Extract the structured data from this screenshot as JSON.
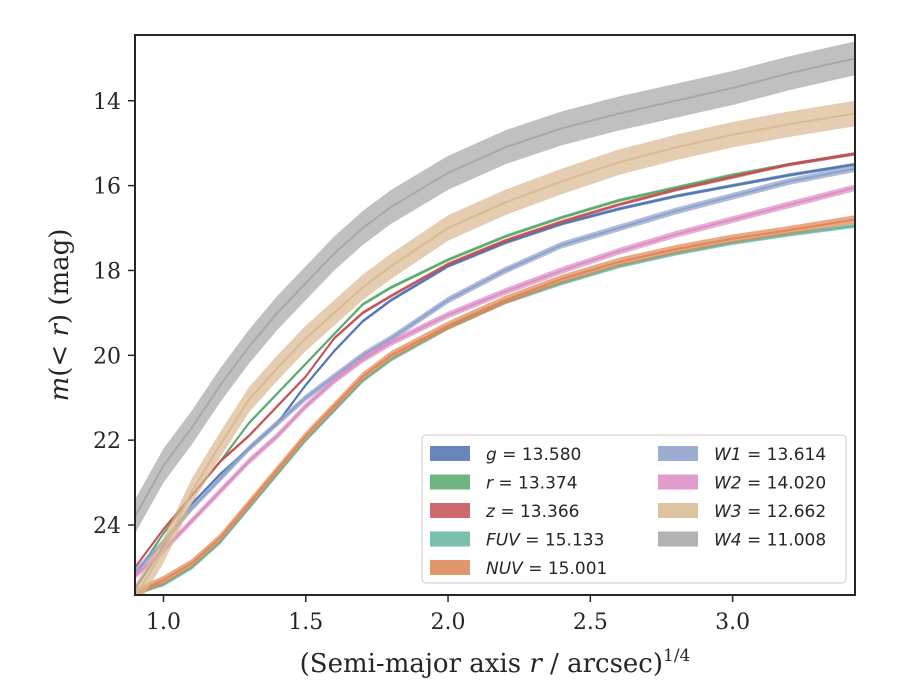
{
  "chart_data": {
    "type": "line",
    "xlabel": "(Semi-major axis r / arcsec)^1/4",
    "ylabel": "m(< r) (mag)",
    "xlim": [
      0.9,
      3.43
    ],
    "ylim": [
      25.65,
      12.45
    ],
    "y_inverted": true,
    "xticks": [
      1.0,
      1.5,
      2.0,
      2.5,
      3.0
    ],
    "xtick_labels": [
      "1.0",
      "1.5",
      "2.0",
      "2.5",
      "3.0"
    ],
    "yticks": [
      14,
      16,
      18,
      20,
      22,
      24
    ],
    "ytick_labels": [
      "14",
      "16",
      "18",
      "20",
      "22",
      "24"
    ],
    "grid": false,
    "legend": {
      "placement": "lower-right",
      "columns": 2,
      "entries": [
        {
          "band": "g",
          "value": "13.580"
        },
        {
          "band": "r",
          "value": "13.374"
        },
        {
          "band": "z",
          "value": "13.366"
        },
        {
          "band": "FUV",
          "value": "15.133"
        },
        {
          "band": "NUV",
          "value": "15.001"
        },
        {
          "band": "W1",
          "value": "13.614"
        },
        {
          "band": "W2",
          "value": "14.020"
        },
        {
          "band": "W3",
          "value": "12.662"
        },
        {
          "band": "W4",
          "value": "11.008"
        }
      ]
    },
    "series": [
      {
        "name": "g",
        "color": "#4c72b0",
        "x": [
          0.9,
          1.0,
          1.1,
          1.2,
          1.3,
          1.4,
          1.5,
          1.6,
          1.7,
          1.8,
          2.0,
          2.2,
          2.4,
          2.6,
          2.8,
          3.0,
          3.2,
          3.43
        ],
        "y": [
          25.5,
          24.5,
          23.5,
          22.8,
          22.2,
          21.6,
          20.7,
          19.9,
          19.2,
          18.7,
          17.9,
          17.35,
          16.9,
          16.55,
          16.25,
          16.0,
          15.75,
          15.5
        ],
        "band_halfwidth": 0.04
      },
      {
        "name": "r",
        "color": "#55a868",
        "x": [
          0.9,
          1.0,
          1.1,
          1.2,
          1.3,
          1.4,
          1.5,
          1.6,
          1.7,
          1.8,
          2.0,
          2.2,
          2.4,
          2.6,
          2.8,
          3.0,
          3.2,
          3.43
        ],
        "y": [
          25.2,
          24.2,
          23.3,
          22.5,
          21.6,
          20.9,
          20.2,
          19.5,
          18.8,
          18.4,
          17.75,
          17.2,
          16.75,
          16.35,
          16.05,
          15.75,
          15.5,
          15.25
        ],
        "band_halfwidth": 0.04
      },
      {
        "name": "z",
        "color": "#c44e52",
        "x": [
          0.9,
          1.0,
          1.1,
          1.2,
          1.3,
          1.4,
          1.5,
          1.6,
          1.7,
          1.8,
          2.0,
          2.2,
          2.4,
          2.6,
          2.8,
          3.0,
          3.2,
          3.43
        ],
        "y": [
          25.0,
          24.1,
          23.3,
          22.5,
          21.9,
          21.2,
          20.5,
          19.6,
          19.0,
          18.6,
          17.85,
          17.3,
          16.85,
          16.45,
          16.1,
          15.8,
          15.5,
          15.25
        ],
        "band_halfwidth": 0.04
      },
      {
        "name": "FUV",
        "color": "#64b5a0",
        "x": [
          0.9,
          1.0,
          1.1,
          1.2,
          1.3,
          1.4,
          1.5,
          1.6,
          1.7,
          1.8,
          2.0,
          2.2,
          2.4,
          2.6,
          2.8,
          3.0,
          3.2,
          3.43
        ],
        "y": [
          25.6,
          25.4,
          25.0,
          24.4,
          23.6,
          22.8,
          22.0,
          21.3,
          20.6,
          20.1,
          19.35,
          18.75,
          18.3,
          17.9,
          17.6,
          17.35,
          17.15,
          16.95
        ],
        "band_halfwidth": 0.05
      },
      {
        "name": "NUV",
        "color": "#dd8452",
        "x": [
          0.9,
          1.0,
          1.1,
          1.2,
          1.3,
          1.4,
          1.5,
          1.6,
          1.7,
          1.8,
          2.0,
          2.2,
          2.4,
          2.6,
          2.8,
          3.0,
          3.2,
          3.43
        ],
        "y": [
          25.6,
          25.3,
          24.9,
          24.3,
          23.5,
          22.7,
          21.9,
          21.2,
          20.5,
          20.0,
          19.3,
          18.7,
          18.2,
          17.8,
          17.5,
          17.25,
          17.05,
          16.8
        ],
        "band_halfwidth": 0.1
      },
      {
        "name": "W1",
        "color": "#8c9fc9",
        "x": [
          0.9,
          1.0,
          1.1,
          1.2,
          1.3,
          1.4,
          1.5,
          1.6,
          1.7,
          1.8,
          2.0,
          2.2,
          2.4,
          2.6,
          2.8,
          3.0,
          3.2,
          3.43
        ],
        "y": [
          25.1,
          24.4,
          23.6,
          22.9,
          22.2,
          21.6,
          21.0,
          20.5,
          20.0,
          19.6,
          18.7,
          18.0,
          17.4,
          17.0,
          16.6,
          16.25,
          15.9,
          15.6
        ],
        "band_halfwidth": 0.08
      },
      {
        "name": "W2",
        "color": "#da8bc3",
        "x": [
          0.9,
          1.0,
          1.1,
          1.2,
          1.3,
          1.4,
          1.5,
          1.6,
          1.7,
          1.8,
          2.0,
          2.2,
          2.4,
          2.6,
          2.8,
          3.0,
          3.2,
          3.43
        ],
        "y": [
          25.2,
          24.6,
          23.9,
          23.2,
          22.5,
          21.9,
          21.2,
          20.6,
          20.1,
          19.7,
          19.05,
          18.5,
          18.0,
          17.55,
          17.15,
          16.8,
          16.45,
          16.05
        ],
        "band_halfwidth": 0.08
      },
      {
        "name": "W3",
        "color": "#d9b88f",
        "x": [
          0.9,
          1.0,
          1.1,
          1.2,
          1.3,
          1.4,
          1.5,
          1.6,
          1.7,
          1.8,
          2.0,
          2.2,
          2.4,
          2.6,
          2.8,
          3.0,
          3.2,
          3.43
        ],
        "y": [
          25.7,
          24.6,
          23.2,
          22.1,
          21.05,
          20.3,
          19.6,
          19.0,
          18.4,
          17.9,
          17.0,
          16.4,
          15.9,
          15.45,
          15.1,
          14.8,
          14.55,
          14.3
        ],
        "band_halfwidth": 0.3
      },
      {
        "name": "W4",
        "color": "#a5a5a5",
        "x": [
          0.9,
          1.0,
          1.1,
          1.2,
          1.3,
          1.4,
          1.5,
          1.6,
          1.7,
          1.8,
          2.0,
          2.2,
          2.4,
          2.6,
          2.8,
          3.0,
          3.2,
          3.43
        ],
        "y": [
          23.8,
          22.6,
          21.7,
          20.7,
          19.8,
          19.0,
          18.3,
          17.6,
          17.0,
          16.5,
          15.7,
          15.1,
          14.65,
          14.3,
          14.0,
          13.7,
          13.35,
          13.0
        ],
        "band_halfwidth": 0.4
      }
    ]
  }
}
